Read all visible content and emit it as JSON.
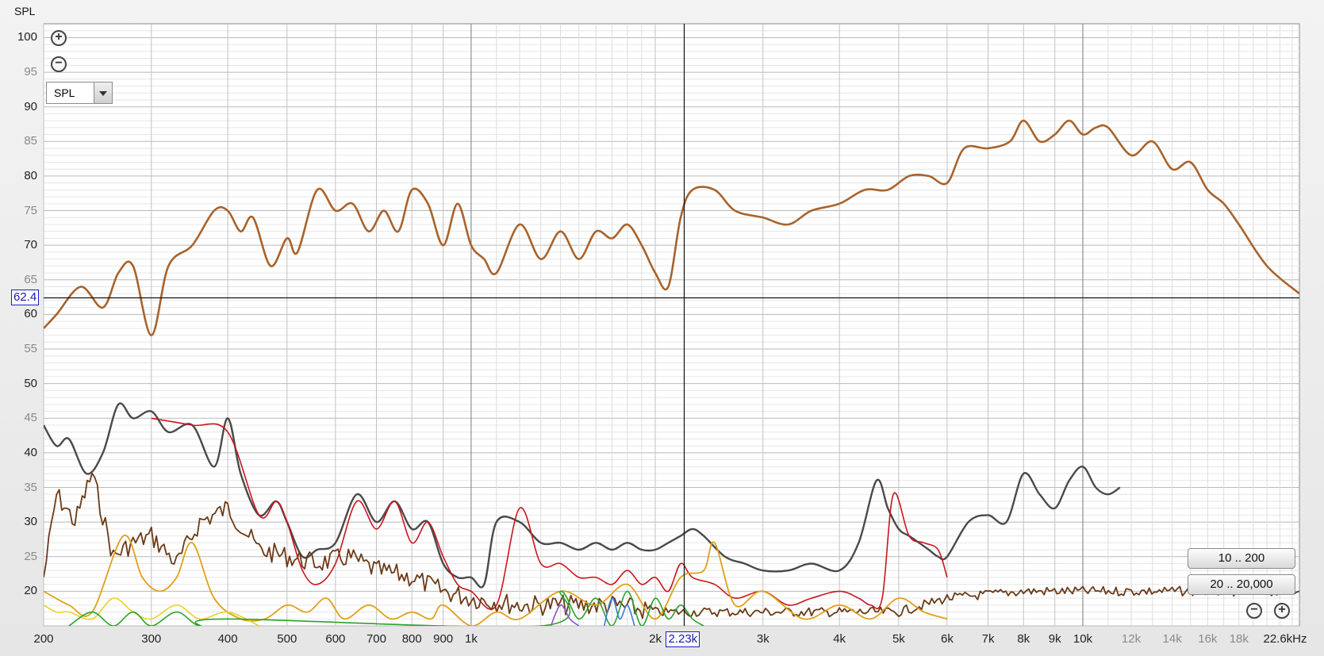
{
  "y_axis_title": "SPL",
  "y_ticks": [
    {
      "v": 100,
      "t": "100",
      "dim": false
    },
    {
      "v": 95,
      "t": "95",
      "dim": true
    },
    {
      "v": 90,
      "t": "90",
      "dim": false
    },
    {
      "v": 85,
      "t": "85",
      "dim": true
    },
    {
      "v": 80,
      "t": "80",
      "dim": false
    },
    {
      "v": 75,
      "t": "75",
      "dim": true
    },
    {
      "v": 70,
      "t": "70",
      "dim": false
    },
    {
      "v": 65,
      "t": "65",
      "dim": true
    },
    {
      "v": 60,
      "t": "60",
      "dim": false
    },
    {
      "v": 55,
      "t": "55",
      "dim": true
    },
    {
      "v": 50,
      "t": "50",
      "dim": false
    },
    {
      "v": 45,
      "t": "45",
      "dim": true
    },
    {
      "v": 40,
      "t": "40",
      "dim": false
    },
    {
      "v": 35,
      "t": "35",
      "dim": true
    },
    {
      "v": 30,
      "t": "30",
      "dim": false
    },
    {
      "v": 25,
      "t": "25",
      "dim": true
    },
    {
      "v": 20,
      "t": "20",
      "dim": false
    }
  ],
  "x_ticks": [
    {
      "f": 200,
      "t": "200",
      "dim": false
    },
    {
      "f": 300,
      "t": "300",
      "dim": false
    },
    {
      "f": 400,
      "t": "400",
      "dim": false
    },
    {
      "f": 500,
      "t": "500",
      "dim": false
    },
    {
      "f": 600,
      "t": "600",
      "dim": false
    },
    {
      "f": 700,
      "t": "700",
      "dim": false
    },
    {
      "f": 800,
      "t": "800",
      "dim": false
    },
    {
      "f": 900,
      "t": "900",
      "dim": false
    },
    {
      "f": 1000,
      "t": "1k",
      "dim": false
    },
    {
      "f": 2000,
      "t": "2k",
      "dim": false
    },
    {
      "f": 3000,
      "t": "3k",
      "dim": false
    },
    {
      "f": 4000,
      "t": "4k",
      "dim": false
    },
    {
      "f": 5000,
      "t": "5k",
      "dim": false
    },
    {
      "f": 6000,
      "t": "6k",
      "dim": false
    },
    {
      "f": 7000,
      "t": "7k",
      "dim": false
    },
    {
      "f": 8000,
      "t": "8k",
      "dim": false
    },
    {
      "f": 9000,
      "t": "9k",
      "dim": false
    },
    {
      "f": 10000,
      "t": "10k",
      "dim": false
    },
    {
      "f": 12000,
      "t": "12k",
      "dim": true
    },
    {
      "f": 14000,
      "t": "14k",
      "dim": true
    },
    {
      "f": 16000,
      "t": "16k",
      "dim": true
    },
    {
      "f": 18000,
      "t": "18k",
      "dim": true
    },
    {
      "f": 22600,
      "t": "22.6kHz",
      "dim": false
    }
  ],
  "cursor": {
    "freq_label": "2.23k",
    "freq": 2230,
    "spl_label": "62.4",
    "spl": 62.4
  },
  "controls": {
    "dropdown_value": "SPL",
    "range_buttons": [
      "10 .. 200",
      "20 .. 20,000"
    ]
  },
  "chart_data": {
    "type": "line",
    "x_scale": "log",
    "xlim": [
      200,
      22600
    ],
    "ylim": [
      15,
      102
    ],
    "xlabel": "",
    "ylabel": "SPL",
    "grid": true,
    "series": [
      {
        "color": "#a8632c",
        "width": 2.6,
        "x": [
          200,
          210,
          230,
          250,
          265,
          280,
          300,
          320,
          350,
          380,
          400,
          420,
          440,
          470,
          500,
          520,
          560,
          600,
          640,
          680,
          720,
          760,
          800,
          850,
          900,
          950,
          1000,
          1050,
          1100,
          1200,
          1300,
          1400,
          1500,
          1600,
          1700,
          1800,
          1900,
          2000,
          2100,
          2200,
          2300,
          2500,
          2700,
          3000,
          3300,
          3600,
          4000,
          4400,
          4800,
          5200,
          5600,
          6000,
          6400,
          7000,
          7600,
          8000,
          8500,
          9000,
          9500,
          10000,
          10500,
          11000,
          12000,
          13000,
          14000,
          15000,
          16000,
          17000,
          18000,
          20000,
          22600
        ],
        "y": [
          58,
          60,
          64,
          61,
          66,
          67,
          57,
          67,
          70,
          75,
          75,
          72,
          74,
          67,
          71,
          69,
          78,
          75,
          76,
          72,
          75,
          72,
          78,
          76,
          70,
          76,
          70,
          68,
          66,
          73,
          68,
          72,
          68,
          72,
          71,
          73,
          70,
          66,
          64,
          74,
          78,
          78,
          75,
          74,
          73,
          75,
          76,
          78,
          78,
          80,
          80,
          79,
          84,
          84,
          85,
          88,
          85,
          86,
          88,
          86,
          87,
          87,
          83,
          85,
          81,
          82,
          78,
          76,
          73,
          67,
          63
        ]
      },
      {
        "color": "#4a4a4a",
        "width": 2.4,
        "x": [
          200,
          210,
          220,
          235,
          250,
          265,
          280,
          300,
          320,
          350,
          380,
          400,
          420,
          450,
          480,
          500,
          530,
          560,
          600,
          650,
          700,
          750,
          800,
          850,
          900,
          950,
          1000,
          1050,
          1100,
          1200,
          1300,
          1400,
          1500,
          1600,
          1700,
          1800,
          1900,
          2000,
          2100,
          2200,
          2300,
          2400,
          2600,
          2800,
          3000,
          3300,
          3600,
          4000,
          4300,
          4600,
          4800,
          5000,
          5200,
          5400,
          5600,
          5800,
          6000,
          6500,
          7000,
          7500,
          8000,
          8500,
          9000,
          9500,
          10000,
          10500,
          11000,
          11500
        ],
        "y": [
          44,
          41,
          42,
          37,
          40,
          47,
          45,
          46,
          43,
          44,
          38,
          45,
          37,
          31,
          33,
          30,
          25,
          26,
          27,
          34,
          30,
          33,
          29,
          30,
          24,
          22,
          22,
          21,
          30,
          30,
          27,
          27,
          26,
          27,
          26,
          27,
          26,
          26,
          27,
          28,
          29,
          28,
          25,
          24,
          23,
          23,
          24,
          23,
          27,
          36,
          32,
          29,
          28,
          27,
          26,
          25,
          25,
          30,
          31,
          30,
          37,
          34,
          32,
          36,
          38,
          35,
          34,
          35
        ]
      },
      {
        "color": "#c8161e",
        "width": 1.6,
        "x": [
          300,
          350,
          400,
          450,
          480,
          500,
          530,
          560,
          600,
          650,
          700,
          750,
          800,
          850,
          900,
          950,
          1000,
          1100,
          1200,
          1300,
          1400,
          1500,
          1600,
          1700,
          1800,
          1900,
          2000,
          2100,
          2200,
          2300,
          2500,
          2700,
          3000,
          3300,
          3600,
          4000,
          4300,
          4500,
          4700,
          4900,
          5200,
          5500,
          5800,
          6000
        ],
        "y": [
          45,
          44,
          43,
          31,
          33,
          30,
          23,
          21,
          24,
          33,
          29,
          33,
          27,
          30,
          25,
          21,
          20,
          18,
          32,
          24,
          24,
          22,
          22,
          21,
          23,
          21,
          22,
          20,
          24,
          22,
          21,
          19,
          20,
          18,
          19,
          20,
          19,
          18,
          19,
          34,
          28,
          27,
          26,
          22
        ]
      },
      {
        "color": "#6b3a17",
        "width": 1.8,
        "noise": true,
        "x": [
          200,
          210,
          225,
          240,
          260,
          280,
          300,
          330,
          360,
          400,
          450,
          500,
          560,
          630,
          700,
          800,
          900,
          1000,
          1200,
          1400,
          1700,
          2000,
          2500,
          3000,
          3500,
          4000,
          5000,
          6000,
          8000,
          10000,
          14000,
          18000,
          22600
        ],
        "y": [
          22,
          34,
          30,
          37,
          25,
          27,
          28,
          24,
          30,
          32,
          26,
          25,
          24,
          25,
          23,
          22,
          20,
          19,
          18,
          18,
          18,
          17,
          17,
          17,
          17,
          17,
          17,
          19,
          20,
          20,
          20,
          20,
          20
        ]
      },
      {
        "color": "#e0a018",
        "width": 1.8,
        "x": [
          200,
          220,
          240,
          270,
          290,
          310,
          330,
          350,
          380,
          420,
          460,
          500,
          540,
          580,
          620,
          680,
          740,
          800,
          860,
          900,
          1000,
          1100,
          1200,
          1400,
          1600,
          1800,
          2000,
          2200,
          2400,
          2500,
          2700,
          3000,
          3500,
          4000,
          4500,
          5000,
          5500,
          6000
        ],
        "y": [
          20,
          18,
          17,
          28,
          22,
          20,
          22,
          27,
          19,
          16,
          16,
          18,
          17,
          19,
          16,
          18,
          16,
          17,
          16,
          18,
          15,
          17,
          16,
          20,
          18,
          21,
          16,
          22,
          23,
          27,
          18,
          20,
          16,
          18,
          16,
          19,
          17,
          16
        ]
      },
      {
        "color": "#e6d22a",
        "width": 1.6,
        "x": [
          200,
          210,
          220,
          240,
          260,
          280,
          300,
          330,
          360,
          400,
          450
        ],
        "y": [
          18,
          17,
          17,
          16,
          19,
          17,
          16,
          18,
          16,
          17,
          15
        ]
      },
      {
        "color": "#2aa22a",
        "width": 1.6,
        "x": [
          220,
          240,
          260,
          280,
          300,
          330,
          360,
          400,
          1300,
          1400,
          1500,
          1600,
          1700,
          1800,
          1900,
          2000,
          2100,
          2200,
          2300,
          2400
        ],
        "y": [
          15,
          17,
          15,
          17,
          15,
          17,
          15,
          16,
          15,
          20,
          16,
          19,
          15,
          20,
          15,
          19,
          16,
          18,
          16,
          15
        ]
      },
      {
        "color": "#8a58c8",
        "width": 1.6,
        "x": [
          1350,
          1400,
          1450,
          1500
        ],
        "y": [
          15,
          18,
          16,
          15
        ]
      },
      {
        "color": "#3c7ad8",
        "width": 1.6,
        "x": [
          1650,
          1700,
          1750,
          1800,
          1850
        ],
        "y": [
          15,
          19,
          16,
          18,
          15
        ]
      }
    ]
  }
}
